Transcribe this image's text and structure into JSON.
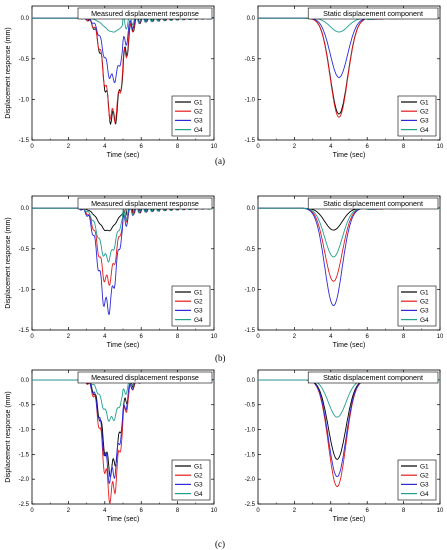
{
  "captions": [
    "(a)",
    "(b)",
    "(c)"
  ],
  "series_colors": {
    "G1": "#000000",
    "G2": "#e41a1c",
    "G3": "#2b2bdc",
    "G4": "#20a090"
  },
  "chart_data": [
    {
      "type": "line",
      "panel": "a-left",
      "title": "Measured displacement response",
      "xlabel": "Time (sec)",
      "ylabel": "Displacement response (mm)",
      "xlim": [
        0,
        10
      ],
      "ylim": [
        -1.5,
        0.15
      ],
      "xticks": [
        "0",
        "2",
        "4",
        "6",
        "8",
        "10"
      ],
      "yticks": [
        "0.0",
        "-0.5",
        "-1.0",
        "-1.5"
      ],
      "legend": "bottom-right",
      "grid": false,
      "series": [
        {
          "name": "G1",
          "peak": -1.25,
          "oscillating": true
        },
        {
          "name": "G2",
          "peak": -1.22,
          "oscillating": true
        },
        {
          "name": "G3",
          "peak": -0.75,
          "oscillating": true
        },
        {
          "name": "G4",
          "peak": -0.17,
          "oscillating": true
        }
      ]
    },
    {
      "type": "line",
      "panel": "a-right",
      "title": "Static displacement component",
      "xlabel": "Time (sec)",
      "ylabel": "",
      "xlim": [
        0,
        10
      ],
      "ylim": [
        -1.5,
        0.15
      ],
      "xticks": [
        "0",
        "2",
        "4",
        "6",
        "8",
        "10"
      ],
      "yticks": [
        "0.0",
        "-0.5",
        "-1.0",
        "-1.5"
      ],
      "legend": "bottom-right",
      "grid": false,
      "series": [
        {
          "name": "G1",
          "peak": -1.18,
          "oscillating": false
        },
        {
          "name": "G2",
          "peak": -1.22,
          "oscillating": false
        },
        {
          "name": "G3",
          "peak": -0.73,
          "oscillating": false
        },
        {
          "name": "G4",
          "peak": -0.17,
          "oscillating": false
        }
      ]
    },
    {
      "type": "line",
      "panel": "b-left",
      "title": "Measured displacement response",
      "xlabel": "Time (sec)",
      "ylabel": "Displacement response (mm)",
      "xlim": [
        0,
        10
      ],
      "ylim": [
        -1.5,
        0.15
      ],
      "xticks": [
        "0",
        "2",
        "4",
        "6",
        "8",
        "10"
      ],
      "yticks": [
        "0.0",
        "-0.5",
        "-1.0",
        "-1.5"
      ],
      "legend": "bottom-right",
      "grid": false,
      "series": [
        {
          "name": "G1",
          "peak": -0.28,
          "oscillating": true
        },
        {
          "name": "G2",
          "peak": -0.9,
          "oscillating": true
        },
        {
          "name": "G3",
          "peak": -1.22,
          "oscillating": true
        },
        {
          "name": "G4",
          "peak": -0.62,
          "oscillating": true
        }
      ]
    },
    {
      "type": "line",
      "panel": "b-right",
      "title": "Static displacement component",
      "xlabel": "Time (sec)",
      "ylabel": "",
      "xlim": [
        0,
        10
      ],
      "ylim": [
        -1.5,
        0.15
      ],
      "xticks": [
        "0",
        "2",
        "4",
        "6",
        "8",
        "10"
      ],
      "yticks": [
        "0.0",
        "-0.5",
        "-1.0",
        "-1.5"
      ],
      "legend": "bottom-right",
      "grid": false,
      "series": [
        {
          "name": "G1",
          "peak": -0.27,
          "oscillating": false
        },
        {
          "name": "G2",
          "peak": -0.9,
          "oscillating": false
        },
        {
          "name": "G3",
          "peak": -1.2,
          "oscillating": false
        },
        {
          "name": "G4",
          "peak": -0.6,
          "oscillating": false
        }
      ]
    },
    {
      "type": "line",
      "panel": "c-left",
      "title": "Measured displacement response",
      "xlabel": "Time (sec)",
      "ylabel": "Displacement response (mm)",
      "xlim": [
        0,
        10
      ],
      "ylim": [
        -2.5,
        0.2
      ],
      "xticks": [
        "0",
        "2",
        "4",
        "6",
        "8",
        "10"
      ],
      "yticks": [
        "0.0",
        "-0.5",
        "-1.0",
        "-1.5",
        "-2.0",
        "-2.5"
      ],
      "legend": "bottom-right",
      "grid": false,
      "series": [
        {
          "name": "G1",
          "peak": -1.8,
          "oscillating": true
        },
        {
          "name": "G2",
          "peak": -2.3,
          "oscillating": true
        },
        {
          "name": "G3",
          "peak": -1.95,
          "oscillating": true
        },
        {
          "name": "G4",
          "peak": -0.8,
          "oscillating": true
        }
      ]
    },
    {
      "type": "line",
      "panel": "c-right",
      "title": "Static displacement component",
      "xlabel": "Time (sec)",
      "ylabel": "",
      "xlim": [
        0,
        10
      ],
      "ylim": [
        -2.5,
        0.2
      ],
      "xticks": [
        "0",
        "2",
        "4",
        "6",
        "8",
        "10"
      ],
      "yticks": [
        "0.0",
        "-0.5",
        "-1.0",
        "-1.5",
        "-2.0",
        "-2.5"
      ],
      "legend": "bottom-right",
      "grid": false,
      "series": [
        {
          "name": "G1",
          "peak": -1.6,
          "oscillating": false
        },
        {
          "name": "G2",
          "peak": -2.15,
          "oscillating": false
        },
        {
          "name": "G3",
          "peak": -1.95,
          "oscillating": false
        },
        {
          "name": "G4",
          "peak": -0.75,
          "oscillating": false
        }
      ]
    }
  ]
}
